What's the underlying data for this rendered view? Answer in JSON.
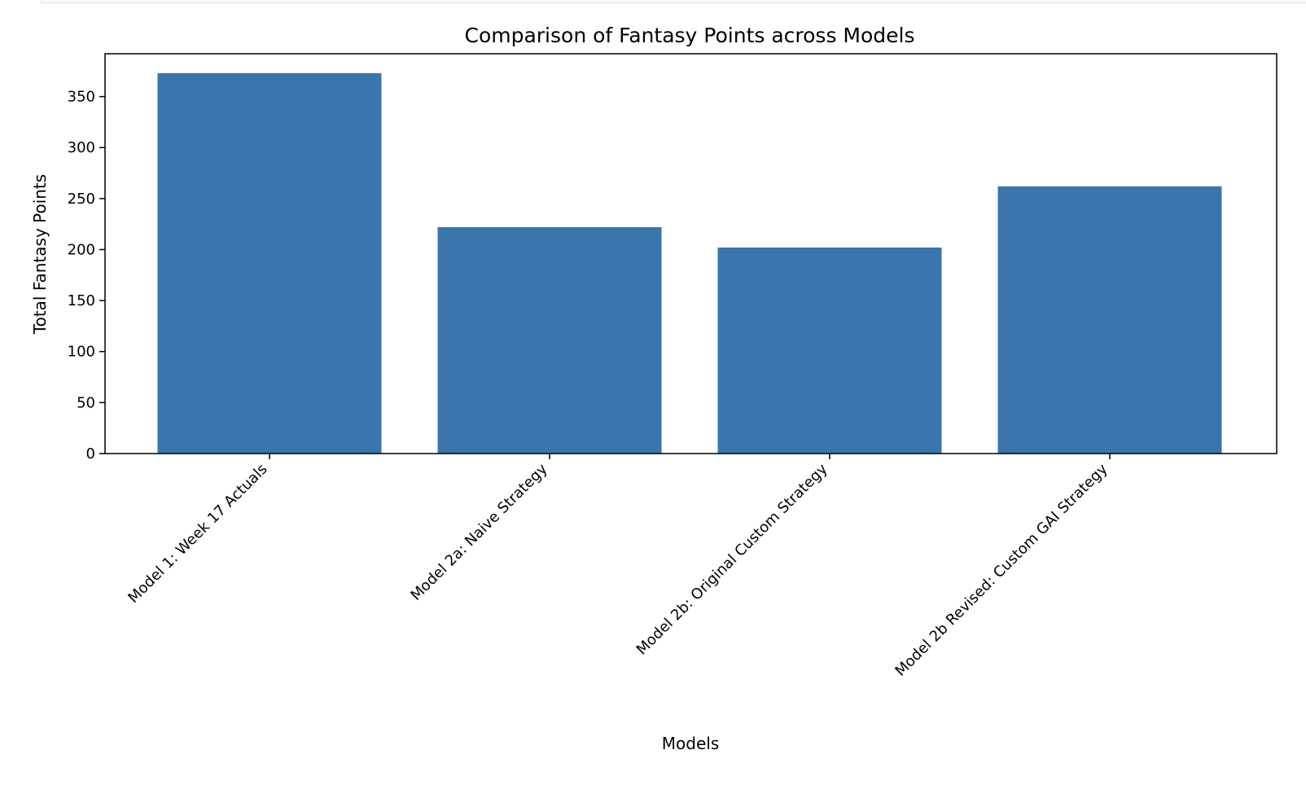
{
  "chart_data": {
    "type": "bar",
    "title": "Comparison of Fantasy Points across Models",
    "xlabel": "Models",
    "ylabel": "Total Fantasy Points",
    "categories": [
      "Model 1: Week 17 Actuals",
      "Model 2a: Naive Strategy",
      "Model 2b: Original Custom Strategy",
      "Model 2b Revised: Custom GAI Strategy"
    ],
    "values": [
      373,
      222,
      202,
      262
    ],
    "ylim": [
      0,
      392
    ],
    "yticks": [
      0,
      50,
      100,
      150,
      200,
      250,
      300,
      350
    ],
    "bar_color": "#3a75ae",
    "grid": false,
    "legend": "none"
  }
}
